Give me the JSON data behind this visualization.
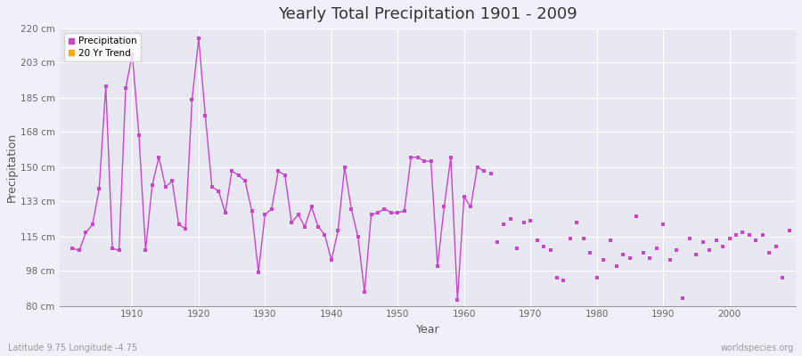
{
  "title": "Yearly Total Precipitation 1901 - 2009",
  "xlabel": "Year",
  "ylabel": "Precipitation",
  "subtitle": "Latitude 9.75 Longitude -4.75",
  "watermark": "worldspecies.org",
  "line_color": "#cc44cc",
  "trend_color": "#ffaa00",
  "fig_bg": "#f0f0f8",
  "plot_bg": "#e8e8f2",
  "ylim": [
    80,
    220
  ],
  "yticks": [
    80,
    98,
    115,
    133,
    150,
    168,
    185,
    203,
    220
  ],
  "ytick_labels": [
    "80 cm",
    "98 cm",
    "115 cm",
    "133 cm",
    "150 cm",
    "168 cm",
    "185 cm",
    "203 cm",
    "220 cm"
  ],
  "xlim": [
    1899,
    2010
  ],
  "xticks": [
    1910,
    1920,
    1930,
    1940,
    1950,
    1960,
    1970,
    1980,
    1990,
    2000
  ],
  "years": [
    1901,
    1902,
    1903,
    1904,
    1905,
    1906,
    1907,
    1908,
    1909,
    1910,
    1911,
    1912,
    1913,
    1914,
    1915,
    1916,
    1917,
    1918,
    1919,
    1920,
    1921,
    1922,
    1923,
    1924,
    1925,
    1926,
    1927,
    1928,
    1929,
    1930,
    1931,
    1932,
    1933,
    1934,
    1935,
    1936,
    1937,
    1938,
    1939,
    1940,
    1941,
    1942,
    1943,
    1944,
    1945,
    1946,
    1947,
    1948,
    1949,
    1950,
    1951,
    1952,
    1953,
    1954,
    1955,
    1956,
    1957,
    1958,
    1959,
    1960,
    1961,
    1962,
    1963,
    1964,
    1965,
    1966,
    1967,
    1968,
    1969,
    1970,
    1971,
    1972,
    1973,
    1974,
    1975,
    1976,
    1977,
    1978,
    1979,
    1980,
    1981,
    1982,
    1983,
    1984,
    1985,
    1986,
    1987,
    1988,
    1989,
    1990,
    1991,
    1992,
    1993,
    1994,
    1995,
    1996,
    1997,
    1998,
    1999,
    2000,
    2001,
    2002,
    2003,
    2004,
    2005,
    2006,
    2007,
    2008,
    2009
  ],
  "precipitation": [
    109,
    108,
    117,
    121,
    139,
    191,
    109,
    108,
    190,
    207,
    166,
    108,
    141,
    155,
    140,
    143,
    121,
    119,
    184,
    215,
    176,
    140,
    138,
    127,
    148,
    146,
    143,
    128,
    97,
    126,
    129,
    148,
    146,
    122,
    126,
    120,
    130,
    120,
    116,
    103,
    118,
    150,
    129,
    115,
    87,
    126,
    127,
    129,
    127,
    127,
    128,
    155,
    155,
    153,
    153,
    100,
    130,
    155,
    83,
    135,
    130,
    150,
    148,
    147,
    112,
    121,
    124,
    109,
    122,
    123,
    113,
    110,
    108,
    94,
    93,
    114,
    122,
    114,
    107,
    94,
    103,
    113,
    100,
    106,
    104,
    125,
    107,
    104,
    109,
    121,
    103,
    108,
    84,
    114,
    106,
    112,
    108,
    113,
    110,
    114,
    116,
    117,
    116,
    113,
    116,
    107,
    110,
    94,
    118
  ],
  "connected_years_end": 1963
}
